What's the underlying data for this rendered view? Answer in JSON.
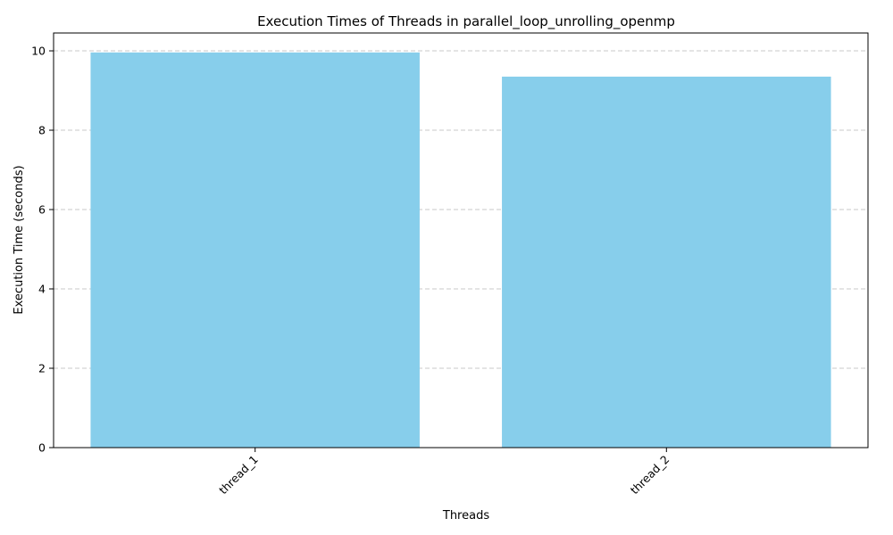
{
  "chart_data": {
    "type": "bar",
    "title": "Execution Times of Threads in parallel_loop_unrolling_openmp",
    "xlabel": "Threads",
    "ylabel": "Execution Time (seconds)",
    "categories": [
      "thread_1",
      "thread_2"
    ],
    "values": [
      9.96,
      9.35
    ],
    "ylim": [
      0,
      10.45
    ],
    "yticks": [
      0,
      2,
      4,
      6,
      8,
      10
    ],
    "grid": "y-dashed",
    "bar_color": "#87ceeb",
    "xtick_rotation": "45 degrees"
  }
}
